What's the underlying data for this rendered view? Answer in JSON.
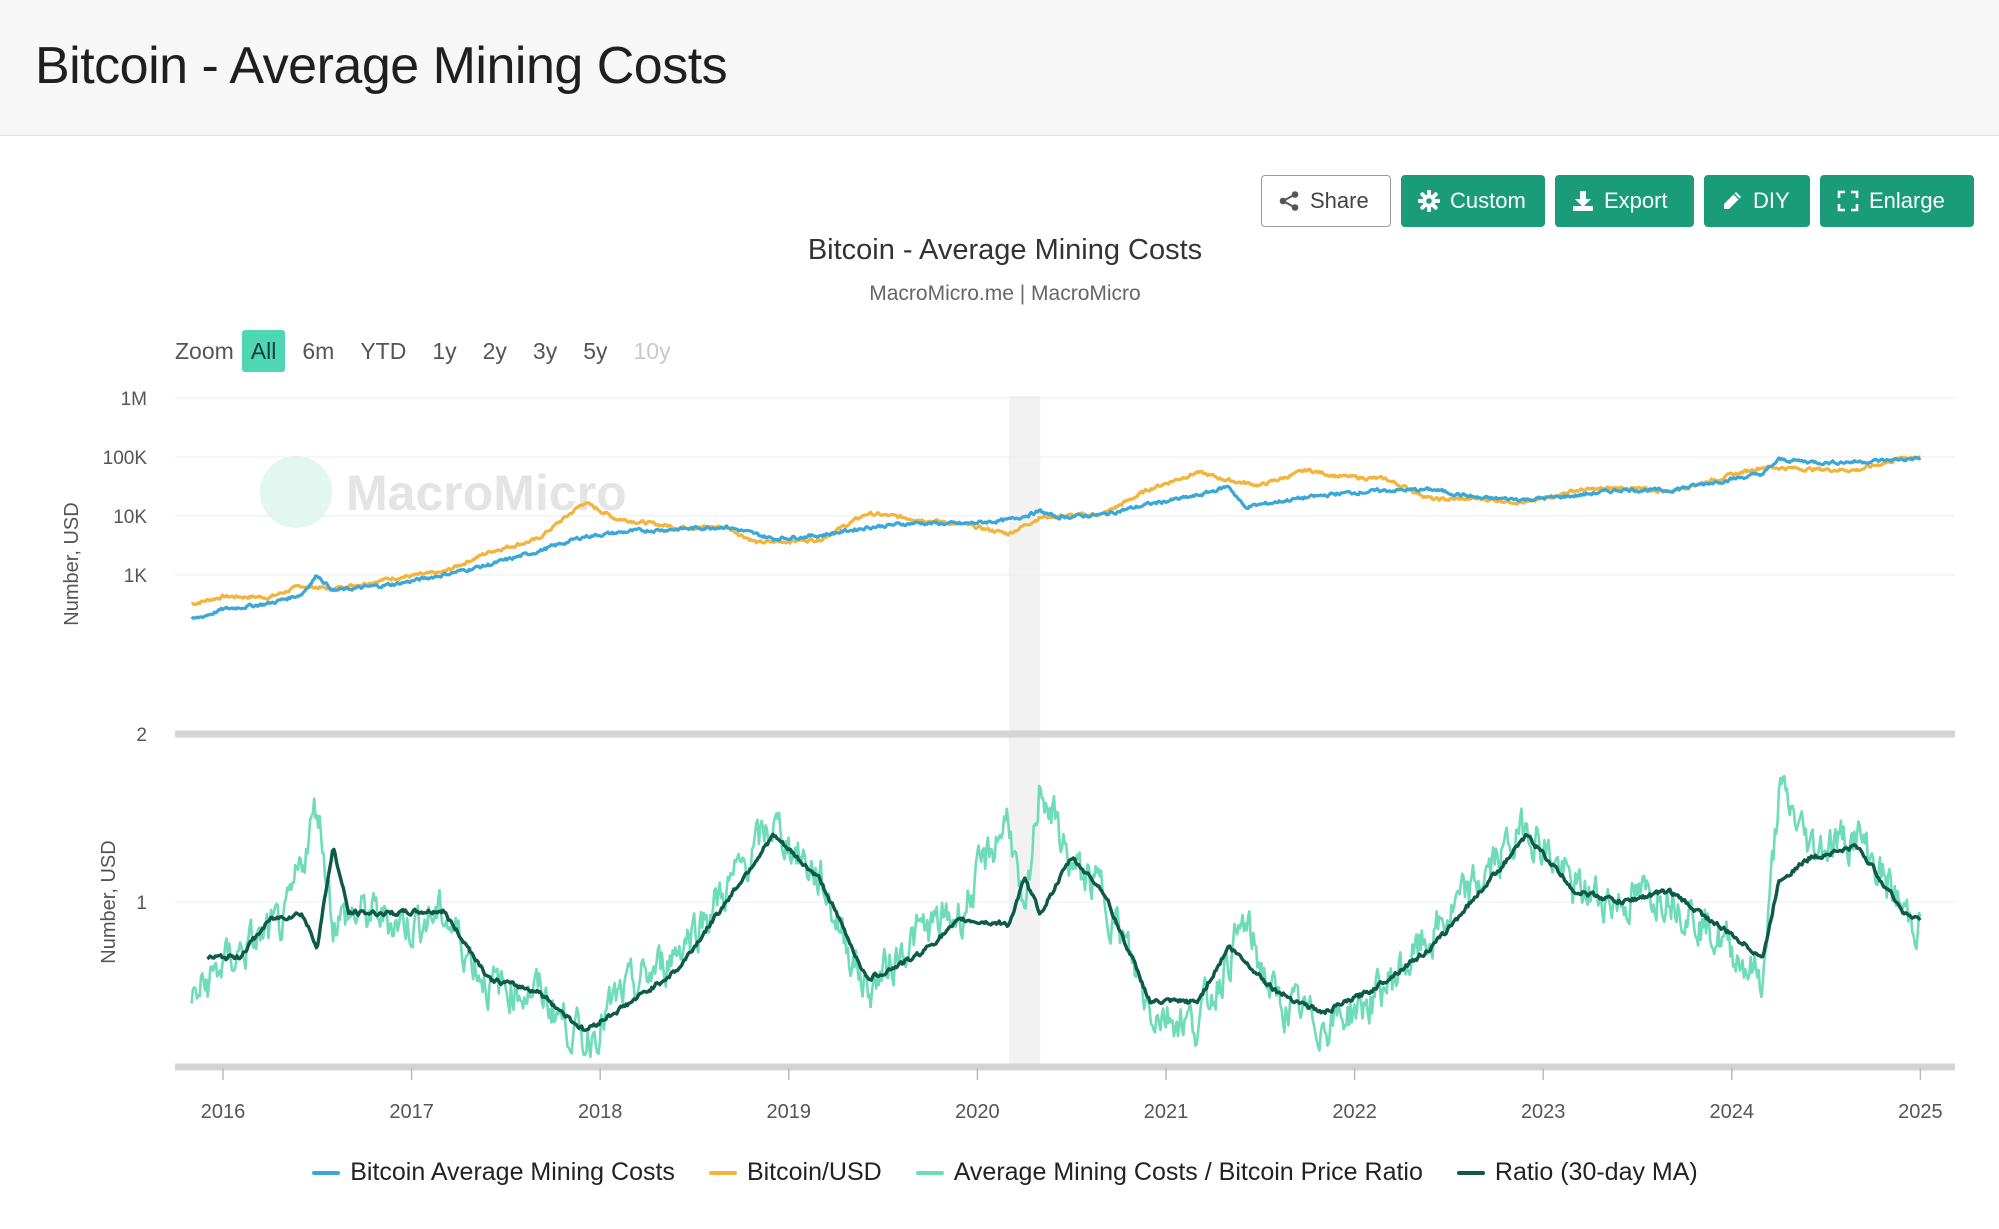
{
  "page": {
    "title": "Bitcoin - Average Mining Costs"
  },
  "toolbar": {
    "share_label": "Share",
    "custom_label": "Custom",
    "export_label": "Export",
    "diy_label": "DIY",
    "enlarge_label": "Enlarge",
    "icons": [
      "share-icon",
      "gear-icon",
      "download-icon",
      "pencil-icon",
      "expand-icon"
    ]
  },
  "zoom": {
    "label": "Zoom",
    "options": [
      "All",
      "6m",
      "YTD",
      "1y",
      "2y",
      "3y",
      "5y",
      "10y"
    ],
    "selected": "All",
    "disabled": [
      "10y"
    ]
  },
  "watermark": "MacroMicro",
  "colors": {
    "accent": "#1a9c78",
    "mining_cost": "#3aa7d6",
    "btc_usd": "#f2b43c",
    "ratio": "#6edcb8",
    "ratio_ma": "#0f5a46"
  },
  "chart_data": {
    "type": "line",
    "title": "Bitcoin - Average Mining Costs",
    "subtitle": "MacroMicro.me | MacroMicro",
    "x_ticks": [
      "2016",
      "2017",
      "2018",
      "2019",
      "2020",
      "2021",
      "2022",
      "2023",
      "2024",
      "2025"
    ],
    "shaded_range": [
      "2020-03",
      "2020-05"
    ],
    "grid": "horizontal",
    "legend_position": "bottom",
    "panels": [
      {
        "ylabel": "Number, USD",
        "scale": "log",
        "ytick_labels": [
          "2",
          "1K",
          "10K",
          "100K",
          "1M"
        ],
        "ylim": [
          2,
          1000000
        ],
        "series": [
          {
            "name": "Bitcoin Average Mining Costs",
            "points": [
              [
                "2015-11",
                170
              ],
              [
                "2016-01",
                260
              ],
              [
                "2016-04",
                330
              ],
              [
                "2016-06",
                470
              ],
              [
                "2016-07",
                1000
              ],
              [
                "2016-08",
                540
              ],
              [
                "2016-12",
                700
              ],
              [
                "2017-03",
                1000
              ],
              [
                "2017-06",
                1500
              ],
              [
                "2017-09",
                2500
              ],
              [
                "2017-12",
                4500
              ],
              [
                "2018-03",
                5500
              ],
              [
                "2018-06",
                6000
              ],
              [
                "2018-09",
                6600
              ],
              [
                "2018-12",
                4100
              ],
              [
                "2019-03",
                4700
              ],
              [
                "2019-06",
                6400
              ],
              [
                "2019-09",
                7600
              ],
              [
                "2019-12",
                7300
              ],
              [
                "2020-03",
                8500
              ],
              [
                "2020-05",
                12000
              ],
              [
                "2020-06",
                9500
              ],
              [
                "2020-09",
                10500
              ],
              [
                "2020-12",
                16000
              ],
              [
                "2021-03",
                22000
              ],
              [
                "2021-05",
                32000
              ],
              [
                "2021-06",
                14000
              ],
              [
                "2021-09",
                19000
              ],
              [
                "2021-12",
                24000
              ],
              [
                "2022-03",
                27000
              ],
              [
                "2022-06",
                28000
              ],
              [
                "2022-09",
                20000
              ],
              [
                "2022-12",
                19000
              ],
              [
                "2023-03",
                22000
              ],
              [
                "2023-06",
                28000
              ],
              [
                "2023-09",
                27000
              ],
              [
                "2023-12",
                38000
              ],
              [
                "2024-03",
                52000
              ],
              [
                "2024-04",
                90000
              ],
              [
                "2024-07",
                80000
              ],
              [
                "2024-10",
                85000
              ],
              [
                "2025-01",
                95000
              ]
            ]
          },
          {
            "name": "Bitcoin/USD",
            "points": [
              [
                "2015-11",
                320
              ],
              [
                "2016-01",
                430
              ],
              [
                "2016-04",
                420
              ],
              [
                "2016-06",
                650
              ],
              [
                "2016-08",
                580
              ],
              [
                "2016-12",
                900
              ],
              [
                "2017-03",
                1100
              ],
              [
                "2017-06",
                2500
              ],
              [
                "2017-09",
                4000
              ],
              [
                "2017-12",
                17000
              ],
              [
                "2018-02",
                9000
              ],
              [
                "2018-06",
                6400
              ],
              [
                "2018-09",
                6500
              ],
              [
                "2018-11",
                3500
              ],
              [
                "2019-03",
                4000
              ],
              [
                "2019-06",
                11000
              ],
              [
                "2019-09",
                9000
              ],
              [
                "2019-12",
                7200
              ],
              [
                "2020-03",
                5000
              ],
              [
                "2020-05",
                9500
              ],
              [
                "2020-09",
                10800
              ],
              [
                "2020-12",
                29000
              ],
              [
                "2021-03",
                55000
              ],
              [
                "2021-05",
                40000
              ],
              [
                "2021-07",
                33000
              ],
              [
                "2021-10",
                60000
              ],
              [
                "2021-12",
                47000
              ],
              [
                "2022-03",
                42000
              ],
              [
                "2022-06",
                19000
              ],
              [
                "2022-09",
                19500
              ],
              [
                "2022-12",
                16800
              ],
              [
                "2023-03",
                27000
              ],
              [
                "2023-06",
                30000
              ],
              [
                "2023-09",
                26000
              ],
              [
                "2023-12",
                42000
              ],
              [
                "2024-03",
                68000
              ],
              [
                "2024-06",
                62000
              ],
              [
                "2024-09",
                60000
              ],
              [
                "2024-12",
                98000
              ],
              [
                "2025-01",
                102000
              ]
            ]
          }
        ]
      },
      {
        "ylabel": "Number, USD",
        "scale": "linear",
        "ytick_labels": [
          "1"
        ],
        "ylim": [
          0.3,
          1.6
        ],
        "series": [
          {
            "name": "Average Mining Costs / Bitcoin Price Ratio",
            "points": [
              [
                "2015-11",
                0.55
              ],
              [
                "2016-01",
                0.72
              ],
              [
                "2016-03",
                0.82
              ],
              [
                "2016-05",
                0.9
              ],
              [
                "2016-07",
                1.45
              ],
              [
                "2016-08",
                0.92
              ],
              [
                "2016-10",
                0.95
              ],
              [
                "2017-01",
                0.9
              ],
              [
                "2017-03",
                0.95
              ],
              [
                "2017-06",
                0.62
              ],
              [
                "2017-09",
                0.6
              ],
              [
                "2017-12",
                0.37
              ],
              [
                "2018-02",
                0.55
              ],
              [
                "2018-05",
                0.72
              ],
              [
                "2018-09",
                1.05
              ],
              [
                "2018-12",
                1.35
              ],
              [
                "2019-03",
                1.1
              ],
              [
                "2019-06",
                0.6
              ],
              [
                "2019-09",
                0.85
              ],
              [
                "2019-12",
                0.95
              ],
              [
                "2020-03",
                1.4
              ],
              [
                "2020-04",
                0.85
              ],
              [
                "2020-05",
                1.55
              ],
              [
                "2020-07",
                1.15
              ],
              [
                "2020-09",
                1.05
              ],
              [
                "2020-12",
                0.52
              ],
              [
                "2021-03",
                0.45
              ],
              [
                "2021-06",
                0.9
              ],
              [
                "2021-08",
                0.55
              ],
              [
                "2021-11",
                0.45
              ],
              [
                "2022-02",
                0.55
              ],
              [
                "2022-06",
                0.85
              ],
              [
                "2022-09",
                1.1
              ],
              [
                "2022-12",
                1.35
              ],
              [
                "2023-03",
                1.05
              ],
              [
                "2023-06",
                1.0
              ],
              [
                "2023-09",
                1.05
              ],
              [
                "2023-12",
                0.85
              ],
              [
                "2024-03",
                0.65
              ],
              [
                "2024-04",
                1.5
              ],
              [
                "2024-06",
                1.25
              ],
              [
                "2024-09",
                1.3
              ],
              [
                "2024-12",
                0.95
              ],
              [
                "2025-01",
                0.9
              ]
            ]
          },
          {
            "name": "Ratio (30-day MA)",
            "points": [
              [
                "2015-12",
                0.75
              ],
              [
                "2016-02",
                0.75
              ],
              [
                "2016-04",
                0.92
              ],
              [
                "2016-06",
                0.95
              ],
              [
                "2016-07",
                0.8
              ],
              [
                "2016-08",
                1.25
              ],
              [
                "2016-09",
                0.95
              ],
              [
                "2016-12",
                0.95
              ],
              [
                "2017-03",
                0.96
              ],
              [
                "2017-06",
                0.65
              ],
              [
                "2017-09",
                0.6
              ],
              [
                "2017-12",
                0.42
              ],
              [
                "2018-03",
                0.55
              ],
              [
                "2018-06",
                0.7
              ],
              [
                "2018-09",
                1.0
              ],
              [
                "2018-12",
                1.3
              ],
              [
                "2019-03",
                1.1
              ],
              [
                "2019-06",
                0.65
              ],
              [
                "2019-09",
                0.75
              ],
              [
                "2019-12",
                0.92
              ],
              [
                "2020-03",
                0.9
              ],
              [
                "2020-04",
                1.1
              ],
              [
                "2020-05",
                0.95
              ],
              [
                "2020-07",
                1.2
              ],
              [
                "2020-09",
                1.05
              ],
              [
                "2020-12",
                0.55
              ],
              [
                "2021-03",
                0.55
              ],
              [
                "2021-05",
                0.8
              ],
              [
                "2021-08",
                0.6
              ],
              [
                "2021-11",
                0.5
              ],
              [
                "2022-02",
                0.6
              ],
              [
                "2022-06",
                0.8
              ],
              [
                "2022-09",
                1.05
              ],
              [
                "2022-12",
                1.3
              ],
              [
                "2023-03",
                1.05
              ],
              [
                "2023-06",
                1.0
              ],
              [
                "2023-09",
                1.05
              ],
              [
                "2023-12",
                0.9
              ],
              [
                "2024-03",
                0.75
              ],
              [
                "2024-04",
                1.1
              ],
              [
                "2024-06",
                1.2
              ],
              [
                "2024-09",
                1.25
              ],
              [
                "2024-12",
                0.95
              ],
              [
                "2025-01",
                0.92
              ]
            ]
          }
        ]
      }
    ]
  }
}
